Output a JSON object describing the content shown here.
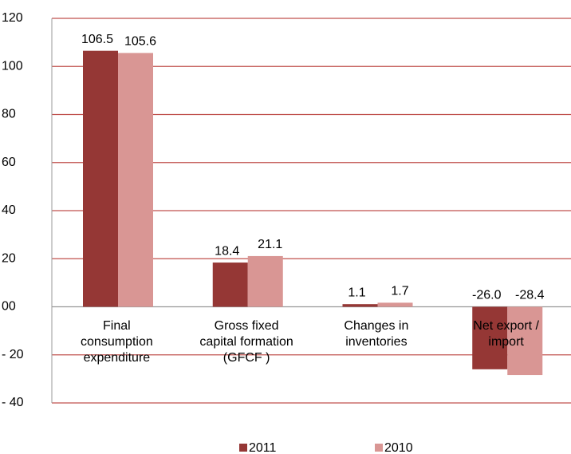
{
  "chart_data": {
    "type": "bar",
    "categories": [
      "Final\nconsumption\nexpenditure",
      "Gross fixed\ncapital formation\n(GFCF )",
      "Changes in\ninventories",
      "Net export /\nimport"
    ],
    "series": [
      {
        "name": "2011",
        "color": "#953735",
        "values": [
          106.5,
          18.4,
          1.1,
          -26.0
        ],
        "value_labels": [
          "106.5",
          "18.4",
          "1.1",
          "-26.0"
        ]
      },
      {
        "name": "2010",
        "color": "#d99694",
        "values": [
          105.6,
          21.1,
          1.7,
          -28.4
        ],
        "value_labels": [
          "105.6",
          "21.1",
          "1.7",
          "-28.4"
        ]
      }
    ],
    "ylim": [
      -40,
      120
    ],
    "yticks": [
      {
        "value": -40,
        "label": "- 40"
      },
      {
        "value": -20,
        "label": "- 20"
      },
      {
        "value": 0,
        "label": "00"
      },
      20,
      40,
      60,
      80,
      100,
      120
    ],
    "grid": true,
    "grid_color": "#c0504d",
    "legend": "bottom"
  }
}
